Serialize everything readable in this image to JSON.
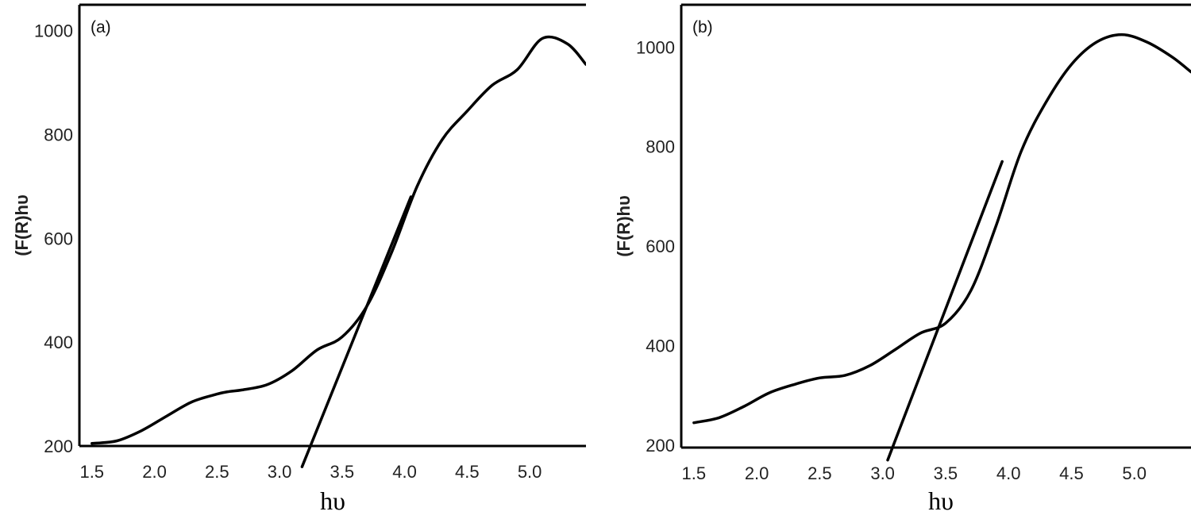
{
  "chart_data": [
    {
      "type": "line",
      "panel_label": "(a)",
      "xlabel": "hυ",
      "ylabel": "(F(R)hυ",
      "xlim": [
        1.4,
        5.45
      ],
      "ylim": [
        200,
        1050
      ],
      "xticks": [
        "1.5",
        "2.0",
        "2.5",
        "3.0",
        "3.5",
        "4.0",
        "4.5",
        "5.0"
      ],
      "xtick_values": [
        1.5,
        2.0,
        2.5,
        3.0,
        3.5,
        4.0,
        4.5,
        5.0
      ],
      "yticks": [
        "200",
        "400",
        "600",
        "800",
        "1000"
      ],
      "ytick_values": [
        200,
        400,
        600,
        800,
        1000
      ],
      "grid": false,
      "series": [
        {
          "x": [
            1.5,
            1.7,
            1.9,
            2.1,
            2.3,
            2.5,
            2.6,
            2.7,
            2.9,
            3.1,
            3.3,
            3.5,
            3.7,
            3.9,
            4.1,
            4.3,
            4.5,
            4.7,
            4.9,
            5.1,
            5.3,
            5.45
          ],
          "y": [
            205,
            210,
            230,
            258,
            285,
            300,
            305,
            308,
            318,
            345,
            385,
            410,
            470,
            575,
            700,
            790,
            845,
            895,
            925,
            985,
            975,
            935
          ]
        },
        {
          "x": [
            3.18,
            4.05
          ],
          "y": [
            160,
            680
          ]
        }
      ]
    },
    {
      "type": "line",
      "panel_label": "(b)",
      "xlabel": "hυ",
      "ylabel": "(F(R)hυ",
      "xlim": [
        1.4,
        5.45
      ],
      "ylim": [
        195,
        1085
      ],
      "xticks": [
        "1.5",
        "2.0",
        "2.5",
        "3.0",
        "3.5",
        "4.0",
        "4.5",
        "5.0"
      ],
      "xtick_values": [
        1.5,
        2.0,
        2.5,
        3.0,
        3.5,
        4.0,
        4.5,
        5.0
      ],
      "yticks": [
        "200",
        "400",
        "600",
        "800",
        "1000"
      ],
      "ytick_values": [
        200,
        400,
        600,
        800,
        1000
      ],
      "grid": false,
      "series": [
        {
          "x": [
            1.5,
            1.7,
            1.9,
            2.1,
            2.3,
            2.5,
            2.7,
            2.9,
            3.1,
            3.3,
            3.5,
            3.7,
            3.9,
            4.1,
            4.3,
            4.5,
            4.7,
            4.9,
            5.1,
            5.3,
            5.45
          ],
          "y": [
            245,
            255,
            278,
            305,
            322,
            335,
            340,
            360,
            392,
            425,
            445,
            510,
            640,
            790,
            890,
            965,
            1010,
            1025,
            1010,
            980,
            950
          ]
        },
        {
          "x": [
            3.04,
            3.95
          ],
          "y": [
            170,
            770
          ]
        }
      ]
    }
  ]
}
